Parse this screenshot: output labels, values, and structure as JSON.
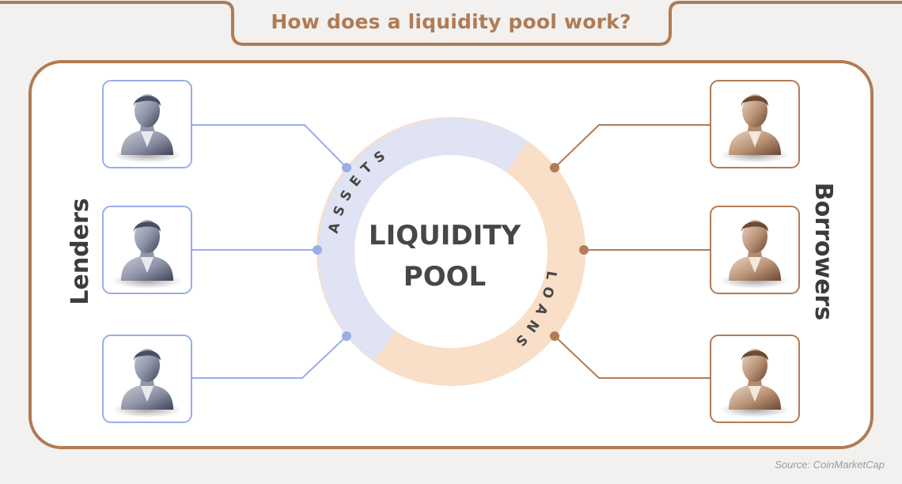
{
  "title": "How does a liquidity pool work?",
  "pool": {
    "line1": "LIQUIDITY",
    "line2": "POOL",
    "assets_label": "ASSETS",
    "loans_label": "LOANS"
  },
  "lenders": {
    "label": "Lenders",
    "count": 3
  },
  "borrowers": {
    "label": "Borrowers",
    "count": 3
  },
  "source": "Source: CoinMarketCap",
  "colors": {
    "accent": "#b07b55",
    "lender_blue": "#9aaee6",
    "ring_blue": "#dfe3f3",
    "ring_orange": "#f9dfc7",
    "borrower_brown": "#b17c56"
  },
  "icons": {
    "lender": "person-icon",
    "borrower": "person-icon"
  }
}
